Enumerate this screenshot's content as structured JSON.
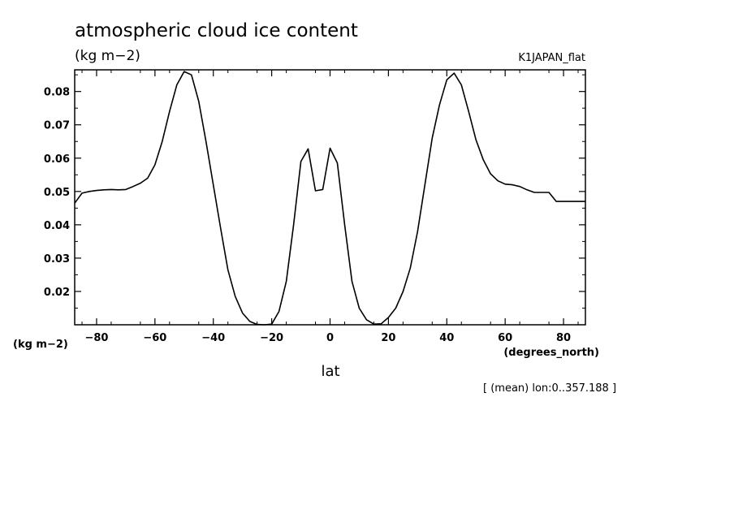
{
  "chart_data": {
    "type": "line",
    "title": "atmospheric cloud ice content",
    "units": "(kg m−2)",
    "dataset": "K1JAPAN_flat",
    "ylabel": "(kg m−2)",
    "xlabel": "lat",
    "xunits": "(degrees_north)",
    "footnote": "[ (mean) lon:0..357.188 ]",
    "xlim": [
      -87.5,
      87.5
    ],
    "ylim": [
      0.01,
      0.0865
    ],
    "xticks": [
      -80,
      -60,
      -40,
      -20,
      0,
      20,
      40,
      60,
      80
    ],
    "xtick_labels": [
      "−80",
      "−60",
      "−40",
      "−20",
      "0",
      "20",
      "40",
      "60",
      "80"
    ],
    "yticks": [
      0.02,
      0.03,
      0.04,
      0.05,
      0.06,
      0.07,
      0.08
    ],
    "ytick_labels": [
      "0.02",
      "0.03",
      "0.04",
      "0.05",
      "0.06",
      "0.07",
      "0.08"
    ],
    "grid": false,
    "series": [
      {
        "x": [
          -87.5,
          -85.0,
          -82.5,
          -80.0,
          -77.5,
          -75.0,
          -72.5,
          -70.0,
          -67.5,
          -65.0,
          -62.5,
          -60.0,
          -57.5,
          -55.0,
          -52.5,
          -50.0,
          -47.5,
          -45.0,
          -42.5,
          -40.0,
          -37.5,
          -35.0,
          -32.5,
          -30.0,
          -27.5,
          -25.0,
          -22.5,
          -20.0,
          -17.5,
          -15.0,
          -12.5,
          -10.0,
          -7.5,
          -5.0,
          -2.5,
          0.0,
          2.5,
          5.0,
          7.5,
          10.0,
          12.5,
          15.0,
          17.5,
          20.0,
          22.5,
          25.0,
          27.5,
          30.0,
          32.5,
          35.0,
          37.5,
          40.0,
          42.5,
          45.0,
          47.5,
          50.0,
          52.5,
          55.0,
          57.5,
          60.0,
          62.5,
          65.0,
          67.5,
          70.0,
          72.5,
          75.0,
          77.5,
          80.0,
          82.5,
          85.0,
          87.5
        ],
        "y": [
          0.0465,
          0.0495,
          0.05,
          0.0503,
          0.0505,
          0.0506,
          0.0505,
          0.0506,
          0.0515,
          0.0525,
          0.054,
          0.058,
          0.065,
          0.074,
          0.082,
          0.086,
          0.085,
          0.077,
          0.065,
          0.052,
          0.039,
          0.0265,
          0.0185,
          0.0135,
          0.011,
          0.0101,
          0.01,
          0.0102,
          0.014,
          0.023,
          0.04,
          0.059,
          0.0628,
          0.0502,
          0.0506,
          0.063,
          0.0585,
          0.04,
          0.023,
          0.015,
          0.0115,
          0.0102,
          0.0103,
          0.0122,
          0.015,
          0.02,
          0.027,
          0.038,
          0.052,
          0.066,
          0.076,
          0.0835,
          0.0855,
          0.082,
          0.074,
          0.0655,
          0.0595,
          0.0553,
          0.0532,
          0.0522,
          0.052,
          0.0515,
          0.0505,
          0.0497,
          0.0497,
          0.0497,
          0.047,
          0.047,
          0.047,
          0.047,
          0.047
        ]
      }
    ]
  }
}
